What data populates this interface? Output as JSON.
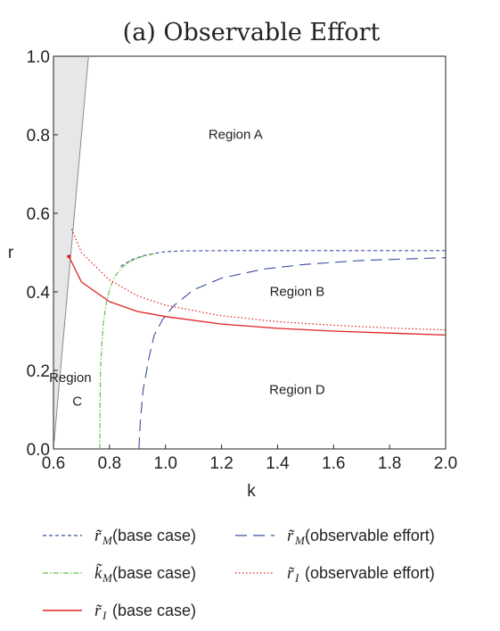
{
  "chart_data": {
    "type": "line",
    "title": "(a) Observable Effort",
    "xlabel": "k",
    "ylabel": "r",
    "xlim": [
      0.6,
      2.0
    ],
    "ylim": [
      0.0,
      1.0
    ],
    "xticks": [
      "0.6",
      "0.8",
      "1.0",
      "1.2",
      "1.4",
      "1.6",
      "1.8",
      "2.0"
    ],
    "yticks": [
      "0.0",
      "0.2",
      "0.4",
      "0.6",
      "0.8",
      "1.0"
    ],
    "grid": false,
    "shaded_region": {
      "color": "#e6e7e8",
      "boundary": [
        {
          "k": 0.6,
          "r": 0.0
        },
        {
          "k": 0.725,
          "r": 1.0
        }
      ]
    },
    "annotations": [
      {
        "id": "region-a",
        "text": "Region A",
        "k": 1.25,
        "r": 0.79
      },
      {
        "id": "region-b",
        "text": "Region B",
        "k": 1.47,
        "r": 0.39
      },
      {
        "id": "region-c-1",
        "text": "Region",
        "k": 0.66,
        "r": 0.17
      },
      {
        "id": "region-c-2",
        "text": "C",
        "k": 0.685,
        "r": 0.11
      },
      {
        "id": "region-d",
        "text": "Region D",
        "k": 1.47,
        "r": 0.14
      }
    ],
    "series": [
      {
        "id": "rM-base",
        "symbol": "r̃",
        "subscript": "M",
        "label": "(base case)",
        "color": "#3a4f9e",
        "dash": "4,3",
        "width": 1.1,
        "points": [
          [
            0.84,
            0.465
          ],
          [
            0.88,
            0.482
          ],
          [
            0.92,
            0.492
          ],
          [
            0.96,
            0.498
          ],
          [
            1.0,
            0.502
          ],
          [
            1.05,
            0.504
          ],
          [
            1.2,
            0.505
          ],
          [
            1.5,
            0.505
          ],
          [
            2.0,
            0.505
          ]
        ]
      },
      {
        "id": "kM-base",
        "symbol": "k̃",
        "subscript": "M",
        "label": "(base case)",
        "color": "#6bbf4e",
        "dash": "6,2,1.5,2",
        "width": 1.2,
        "points": [
          [
            0.765,
            0.0
          ],
          [
            0.766,
            0.1
          ],
          [
            0.768,
            0.2
          ],
          [
            0.772,
            0.26
          ],
          [
            0.778,
            0.32
          ],
          [
            0.788,
            0.37
          ],
          [
            0.802,
            0.41
          ],
          [
            0.82,
            0.44
          ],
          [
            0.845,
            0.462
          ],
          [
            0.88,
            0.48
          ],
          [
            0.92,
            0.491
          ],
          [
            0.96,
            0.497
          ]
        ]
      },
      {
        "id": "rI-base",
        "symbol": "r̃",
        "subscript": "I",
        "label": "(base case)",
        "color": "#e02020",
        "dash": "",
        "width": 1.3,
        "points": [
          [
            0.655,
            0.49
          ],
          [
            0.7,
            0.425
          ],
          [
            0.8,
            0.375
          ],
          [
            0.9,
            0.35
          ],
          [
            1.0,
            0.337
          ],
          [
            1.2,
            0.318
          ],
          [
            1.4,
            0.307
          ],
          [
            1.6,
            0.3
          ],
          [
            1.8,
            0.295
          ],
          [
            2.0,
            0.29
          ]
        ]
      },
      {
        "id": "rM-obs",
        "symbol": "r̃",
        "subscript": "M",
        "label": "(observable effort)",
        "color": "#3a4f9e",
        "dash": "13,7",
        "width": 1.1,
        "points": [
          [
            0.905,
            0.0
          ],
          [
            0.91,
            0.07
          ],
          [
            0.92,
            0.15
          ],
          [
            0.94,
            0.23
          ],
          [
            0.96,
            0.29
          ],
          [
            0.99,
            0.33
          ],
          [
            1.03,
            0.365
          ],
          [
            1.1,
            0.405
          ],
          [
            1.2,
            0.435
          ],
          [
            1.35,
            0.458
          ],
          [
            1.5,
            0.47
          ],
          [
            1.7,
            0.48
          ],
          [
            2.0,
            0.487
          ]
        ]
      },
      {
        "id": "rI-obs",
        "symbol": "r̃",
        "subscript": "I",
        "label": "(observable effort)",
        "color": "#e02020",
        "dash": "1.5,2.5",
        "width": 1.2,
        "points": [
          [
            0.665,
            0.56
          ],
          [
            0.7,
            0.5
          ],
          [
            0.8,
            0.43
          ],
          [
            0.9,
            0.39
          ],
          [
            1.0,
            0.366
          ],
          [
            1.2,
            0.339
          ],
          [
            1.4,
            0.324
          ],
          [
            1.6,
            0.315
          ],
          [
            1.8,
            0.308
          ],
          [
            2.0,
            0.303
          ]
        ]
      }
    ],
    "legend": {
      "placement": "bottom",
      "order": [
        "rM-base",
        "rM-obs",
        "kM-base",
        "rI-obs",
        "rI-base"
      ]
    }
  }
}
